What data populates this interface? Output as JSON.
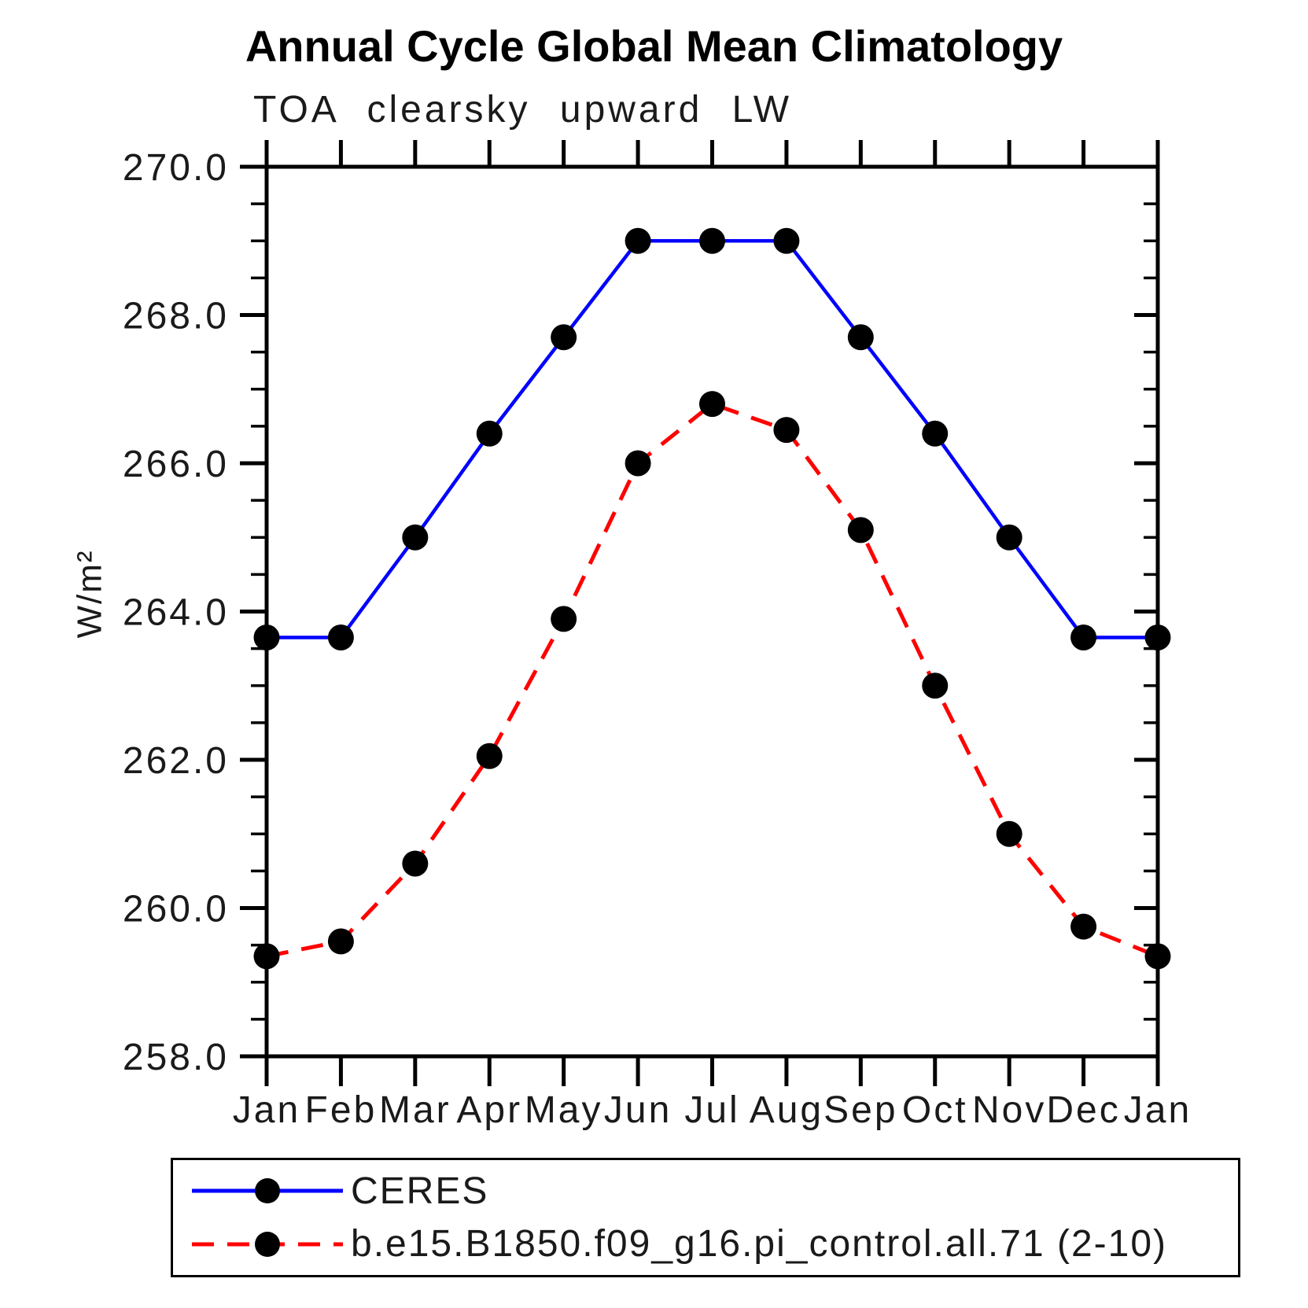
{
  "chart_data": {
    "type": "line",
    "title": "Annual Cycle Global Mean Climatology",
    "subtitle": "TOA clearsky upward LW",
    "xlabel": "",
    "ylabel": "W/m²",
    "categories": [
      "Jan",
      "Feb",
      "Mar",
      "Apr",
      "May",
      "Jun",
      "Jul",
      "Aug",
      "Sep",
      "Oct",
      "Nov",
      "Dec",
      "Jan"
    ],
    "ylim": [
      258.0,
      270.0
    ],
    "ytick_step": 2.0,
    "yminor_step": 0.5,
    "ytick_label_format": "one_decimal",
    "grid": false,
    "legend_position": "bottom-left-box",
    "axis_color": "#000000",
    "marker": "filled-circle",
    "marker_color": "#000000",
    "series": [
      {
        "name": "CERES",
        "color": "#0000ff",
        "style": "solid",
        "values": [
          263.65,
          263.65,
          265.0,
          266.4,
          267.7,
          269.0,
          269.0,
          269.0,
          267.7,
          266.4,
          265.0,
          263.65,
          263.65
        ]
      },
      {
        "name": "b.e15.B1850.f09_g16.pi_control.all.71 (2-10)",
        "color": "#ff0000",
        "style": "dashed",
        "values": [
          259.35,
          259.55,
          260.6,
          262.05,
          263.9,
          266.0,
          266.8,
          266.45,
          265.1,
          263.0,
          261.0,
          259.75,
          259.35
        ]
      }
    ]
  }
}
